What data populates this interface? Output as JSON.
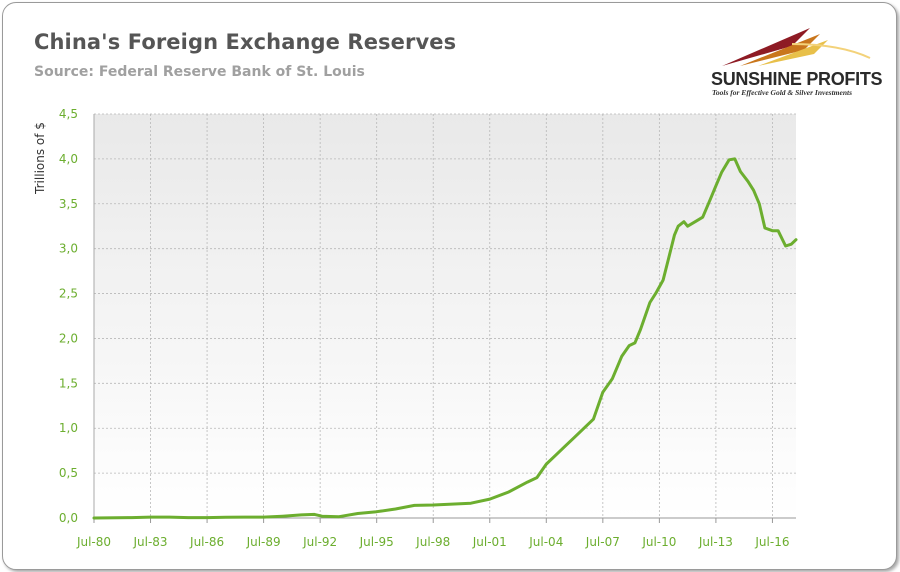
{
  "title": "China's Foreign Exchange Reserves",
  "subtitle": "Source: Federal Reserve Bank of St. Louis",
  "logo": {
    "name": "SUNSHINE PROFITS",
    "tagline": "Tools for Effective Gold & Silver Investments"
  },
  "colors": {
    "line": "#6cae2f",
    "axis_tick_labels": "#6cae2f",
    "plot_bg_top": "#e9e9e9",
    "plot_bg_bottom": "#ffffff",
    "grid": "#b8b8b8"
  },
  "chart_data": {
    "type": "line",
    "title": "China's Foreign Exchange Reserves",
    "subtitle": "Source: Federal Reserve Bank of St. Louis",
    "xlabel": "",
    "ylabel": "Trillions of $",
    "ylim": [
      0,
      4.5
    ],
    "xlim": [
      1980.5,
      2017.75
    ],
    "y_ticks": [
      "0,0",
      "0,5",
      "1,0",
      "1,5",
      "2,0",
      "2,5",
      "3,0",
      "3,5",
      "4,0",
      "4,5"
    ],
    "x_ticks": [
      "Jul-80",
      "Jul-83",
      "Jul-86",
      "Jul-89",
      "Jul-92",
      "Jul-95",
      "Jul-98",
      "Jul-01",
      "Jul-04",
      "Jul-07",
      "Jul-10",
      "Jul-13",
      "Jul-16"
    ],
    "grid": true,
    "series": [
      {
        "x": [
          1980.5,
          1982.5,
          1983.5,
          1984.5,
          1985.5,
          1986.5,
          1987.5,
          1988.5,
          1989.5,
          1990.5,
          1991.5,
          1992.2,
          1992.6,
          1993.5,
          1994.5,
          1995.5,
          1996.5,
          1997.5,
          1998.5,
          1999.5,
          2000.5,
          2001.5,
          2002.5,
          2003.5,
          2004.0,
          2004.5,
          2005.0,
          2005.5,
          2006.0,
          2006.5,
          2007.0,
          2007.5,
          2008.0,
          2008.5,
          2008.9,
          2009.2,
          2009.5,
          2010.0,
          2010.3,
          2010.7,
          2011.0,
          2011.3,
          2011.5,
          2011.8,
          2012.0,
          2012.4,
          2012.8,
          2013.2,
          2013.5,
          2013.8,
          2014.2,
          2014.5,
          2014.8,
          2015.2,
          2015.5,
          2015.8,
          2016.1,
          2016.5,
          2016.8,
          2017.2,
          2017.5,
          2017.75
        ],
        "values": [
          0.0,
          0.005,
          0.01,
          0.01,
          0.005,
          0.005,
          0.008,
          0.01,
          0.01,
          0.02,
          0.035,
          0.04,
          0.02,
          0.015,
          0.05,
          0.07,
          0.1,
          0.14,
          0.145,
          0.155,
          0.165,
          0.21,
          0.29,
          0.4,
          0.45,
          0.6,
          0.7,
          0.8,
          0.9,
          1.0,
          1.1,
          1.4,
          1.55,
          1.8,
          1.92,
          1.95,
          2.1,
          2.4,
          2.5,
          2.65,
          2.9,
          3.15,
          3.25,
          3.3,
          3.25,
          3.3,
          3.35,
          3.55,
          3.7,
          3.85,
          3.99,
          4.0,
          3.86,
          3.75,
          3.65,
          3.5,
          3.23,
          3.2,
          3.2,
          3.03,
          3.05,
          3.1
        ]
      }
    ]
  }
}
